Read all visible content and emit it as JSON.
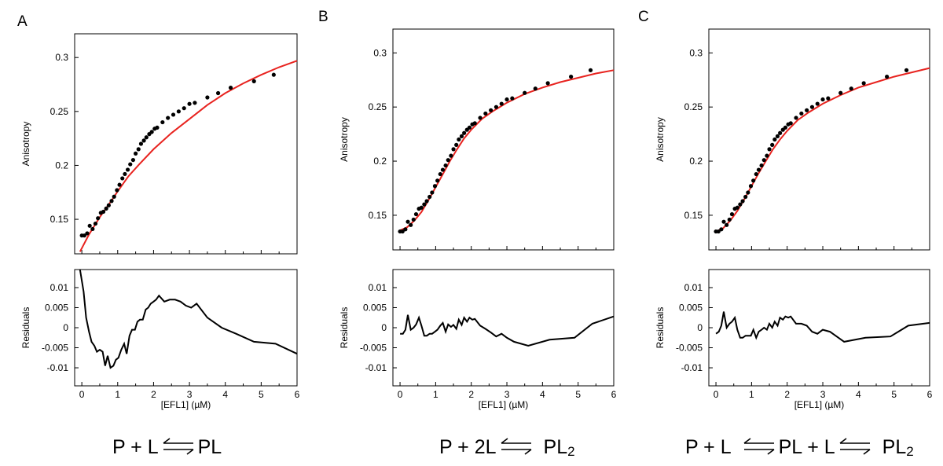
{
  "chart_data": [
    {
      "panel": "A",
      "type": "scatter",
      "xlabel": "[EFL1] (µM)",
      "ylabel": "Anisotropy",
      "residual_ylabel": "Residuals",
      "xlim": [
        -0.2,
        6
      ],
      "ylim": [
        0.118,
        0.322
      ],
      "yticks": [
        0.15,
        0.2,
        0.25,
        0.3
      ],
      "ytick_labels": [
        "0.15",
        "0.2",
        "0.25",
        "0.3"
      ],
      "residual_ylim": [
        -0.0145,
        0.0145
      ],
      "residual_yticks": [
        0.01,
        0.005,
        0,
        -0.005,
        -0.01
      ],
      "residual_ytick_labels": [
        "0.01",
        "0.005",
        "0",
        "-0.005",
        "-0.01"
      ],
      "xticks": [
        0,
        1,
        2,
        3,
        4,
        5,
        6
      ],
      "xtick_labels": [
        "0",
        "1",
        "2",
        "3",
        "4",
        "5",
        "6"
      ],
      "data": {
        "x": [
          0.0,
          0.07,
          0.15,
          0.22,
          0.3,
          0.38,
          0.45,
          0.53,
          0.6,
          0.68,
          0.75,
          0.83,
          0.9,
          0.98,
          1.05,
          1.13,
          1.2,
          1.28,
          1.35,
          1.43,
          1.5,
          1.58,
          1.65,
          1.73,
          1.8,
          1.88,
          1.95,
          2.03,
          2.1,
          2.25,
          2.4,
          2.55,
          2.7,
          2.85,
          3.0,
          3.15,
          3.5,
          3.8,
          4.15,
          4.8,
          5.35
        ],
        "y": [
          0.135,
          0.135,
          0.137,
          0.144,
          0.141,
          0.146,
          0.151,
          0.156,
          0.157,
          0.16,
          0.163,
          0.167,
          0.171,
          0.177,
          0.182,
          0.188,
          0.192,
          0.196,
          0.201,
          0.205,
          0.211,
          0.215,
          0.22,
          0.223,
          0.226,
          0.229,
          0.231,
          0.234,
          0.235,
          0.24,
          0.244,
          0.247,
          0.25,
          0.253,
          0.257,
          0.258,
          0.263,
          0.267,
          0.272,
          0.278,
          0.284
        ]
      },
      "fit": {
        "x": [
          -0.05,
          0.2,
          0.5,
          0.8,
          1.0,
          1.3,
          1.6,
          2.0,
          2.5,
          3.0,
          3.5,
          4.0,
          4.5,
          5.0,
          5.5,
          6.0
        ],
        "y": [
          0.12,
          0.136,
          0.152,
          0.166,
          0.176,
          0.19,
          0.201,
          0.215,
          0.23,
          0.243,
          0.256,
          0.267,
          0.276,
          0.284,
          0.291,
          0.297
        ]
      },
      "residuals": {
        "x": [
          -0.05,
          0.05,
          0.12,
          0.2,
          0.27,
          0.35,
          0.42,
          0.5,
          0.58,
          0.65,
          0.72,
          0.8,
          0.88,
          0.95,
          1.02,
          1.1,
          1.18,
          1.25,
          1.33,
          1.4,
          1.48,
          1.55,
          1.62,
          1.7,
          1.78,
          1.85,
          1.92,
          2.0,
          2.07,
          2.15,
          2.3,
          2.45,
          2.6,
          2.75,
          2.9,
          3.05,
          3.2,
          3.5,
          3.9,
          4.3,
          4.8,
          5.4,
          6.0
        ],
        "y": [
          0.0145,
          0.009,
          0.0025,
          -0.001,
          -0.0035,
          -0.0045,
          -0.006,
          -0.0055,
          -0.006,
          -0.0095,
          -0.007,
          -0.01,
          -0.0095,
          -0.008,
          -0.0075,
          -0.0055,
          -0.004,
          -0.0065,
          -0.002,
          -0.0005,
          -0.0005,
          0.0015,
          0.002,
          0.002,
          0.0045,
          0.005,
          0.006,
          0.0065,
          0.007,
          0.008,
          0.0065,
          0.007,
          0.007,
          0.0065,
          0.0055,
          0.005,
          0.006,
          0.0025,
          0.0,
          -0.0015,
          -0.0035,
          -0.004,
          -0.0065
        ]
      }
    },
    {
      "panel": "B",
      "type": "scatter",
      "xlabel": "[EFL1] (µM)",
      "ylabel": "Anisotropy",
      "residual_ylabel": "Residuals",
      "xlim": [
        -0.2,
        6
      ],
      "ylim": [
        0.118,
        0.322
      ],
      "yticks": [
        0.15,
        0.2,
        0.25,
        0.3
      ],
      "ytick_labels": [
        "0.15",
        "0.2",
        "0.25",
        "0.3"
      ],
      "residual_ylim": [
        -0.0145,
        0.0145
      ],
      "residual_yticks": [
        0.01,
        0.005,
        0,
        -0.005,
        -0.01
      ],
      "residual_ytick_labels": [
        "0.01",
        "0.005",
        "0",
        "-0.005",
        "-0.01"
      ],
      "xticks": [
        0,
        1,
        2,
        3,
        4,
        5,
        6
      ],
      "xtick_labels": [
        "0",
        "1",
        "2",
        "3",
        "4",
        "5",
        "6"
      ],
      "data": {
        "x": [
          0.0,
          0.07,
          0.15,
          0.22,
          0.3,
          0.38,
          0.45,
          0.53,
          0.6,
          0.68,
          0.75,
          0.83,
          0.9,
          0.98,
          1.05,
          1.13,
          1.2,
          1.28,
          1.35,
          1.43,
          1.5,
          1.58,
          1.65,
          1.73,
          1.8,
          1.88,
          1.95,
          2.03,
          2.1,
          2.25,
          2.4,
          2.55,
          2.7,
          2.85,
          3.0,
          3.15,
          3.5,
          3.8,
          4.15,
          4.8,
          5.35
        ],
        "y": [
          0.135,
          0.135,
          0.137,
          0.144,
          0.141,
          0.146,
          0.151,
          0.156,
          0.157,
          0.16,
          0.163,
          0.167,
          0.171,
          0.177,
          0.182,
          0.188,
          0.192,
          0.196,
          0.201,
          0.205,
          0.211,
          0.215,
          0.22,
          0.223,
          0.226,
          0.229,
          0.231,
          0.234,
          0.235,
          0.24,
          0.244,
          0.247,
          0.25,
          0.253,
          0.257,
          0.258,
          0.263,
          0.267,
          0.272,
          0.278,
          0.284
        ]
      },
      "fit": {
        "x": [
          0.0,
          0.2,
          0.4,
          0.6,
          0.8,
          1.0,
          1.2,
          1.4,
          1.6,
          1.8,
          2.0,
          2.3,
          2.6,
          3.0,
          3.5,
          4.0,
          4.5,
          5.0,
          5.5,
          6.0
        ],
        "y": [
          0.136,
          0.139,
          0.145,
          0.153,
          0.164,
          0.176,
          0.188,
          0.2,
          0.211,
          0.221,
          0.229,
          0.239,
          0.246,
          0.254,
          0.262,
          0.268,
          0.273,
          0.277,
          0.281,
          0.284
        ]
      },
      "residuals": {
        "x": [
          0.0,
          0.08,
          0.15,
          0.22,
          0.3,
          0.38,
          0.45,
          0.53,
          0.6,
          0.68,
          0.75,
          0.83,
          0.9,
          0.98,
          1.05,
          1.13,
          1.2,
          1.28,
          1.35,
          1.43,
          1.5,
          1.58,
          1.65,
          1.73,
          1.8,
          1.88,
          1.95,
          2.03,
          2.1,
          2.25,
          2.4,
          2.55,
          2.7,
          2.85,
          3.0,
          3.2,
          3.6,
          4.2,
          4.9,
          5.4,
          6.0
        ],
        "y": [
          -0.0015,
          -0.0015,
          -0.0005,
          0.0032,
          -0.0005,
          0.0,
          0.0008,
          0.0025,
          0.0005,
          -0.002,
          -0.002,
          -0.0015,
          -0.0015,
          -0.001,
          -0.0005,
          0.0005,
          0.0012,
          -0.001,
          0.0008,
          0.0002,
          0.0007,
          -0.0003,
          0.002,
          0.0007,
          0.0025,
          0.0015,
          0.0025,
          0.002,
          0.0022,
          0.0005,
          -0.0003,
          -0.0012,
          -0.0022,
          -0.0015,
          -0.0025,
          -0.0035,
          -0.0045,
          -0.003,
          -0.0025,
          0.001,
          0.0028
        ]
      }
    },
    {
      "panel": "C",
      "type": "scatter",
      "xlabel": "[EFL1] (µM)",
      "ylabel": "Anisotropy",
      "residual_ylabel": "Residuals",
      "xlim": [
        -0.2,
        6
      ],
      "ylim": [
        0.118,
        0.322
      ],
      "yticks": [
        0.15,
        0.2,
        0.25,
        0.3
      ],
      "ytick_labels": [
        "0.15",
        "0.2",
        "0.25",
        "0.3"
      ],
      "residual_ylim": [
        -0.0145,
        0.0145
      ],
      "residual_yticks": [
        0.01,
        0.005,
        0,
        -0.005,
        -0.01
      ],
      "residual_ytick_labels": [
        "0.01",
        "0.005",
        "0",
        "-0.005",
        "-0.01"
      ],
      "xticks": [
        0,
        1,
        2,
        3,
        4,
        5,
        6
      ],
      "xtick_labels": [
        "0",
        "1",
        "2",
        "3",
        "4",
        "5",
        "6"
      ],
      "data": {
        "x": [
          0.0,
          0.07,
          0.15,
          0.22,
          0.3,
          0.38,
          0.45,
          0.53,
          0.6,
          0.68,
          0.75,
          0.83,
          0.9,
          0.98,
          1.05,
          1.13,
          1.2,
          1.28,
          1.35,
          1.43,
          1.5,
          1.58,
          1.65,
          1.73,
          1.8,
          1.88,
          1.95,
          2.03,
          2.1,
          2.25,
          2.4,
          2.55,
          2.7,
          2.85,
          3.0,
          3.15,
          3.5,
          3.8,
          4.15,
          4.8,
          5.35
        ],
        "y": [
          0.135,
          0.135,
          0.137,
          0.144,
          0.141,
          0.146,
          0.151,
          0.156,
          0.157,
          0.16,
          0.163,
          0.167,
          0.171,
          0.177,
          0.182,
          0.188,
          0.192,
          0.196,
          0.201,
          0.205,
          0.211,
          0.215,
          0.22,
          0.223,
          0.226,
          0.229,
          0.231,
          0.234,
          0.235,
          0.24,
          0.244,
          0.247,
          0.25,
          0.253,
          0.257,
          0.258,
          0.263,
          0.267,
          0.272,
          0.278,
          0.284
        ]
      },
      "fit": {
        "x": [
          0.0,
          0.2,
          0.4,
          0.6,
          0.8,
          1.0,
          1.2,
          1.4,
          1.6,
          1.8,
          2.0,
          2.3,
          2.6,
          3.0,
          3.5,
          4.0,
          4.5,
          5.0,
          5.5,
          6.0
        ],
        "y": [
          0.135,
          0.138,
          0.145,
          0.154,
          0.165,
          0.177,
          0.189,
          0.2,
          0.211,
          0.22,
          0.228,
          0.238,
          0.245,
          0.253,
          0.261,
          0.268,
          0.273,
          0.278,
          0.282,
          0.286
        ]
      },
      "residuals": {
        "x": [
          0.0,
          0.08,
          0.15,
          0.22,
          0.3,
          0.38,
          0.45,
          0.53,
          0.6,
          0.68,
          0.75,
          0.83,
          0.9,
          0.98,
          1.05,
          1.13,
          1.2,
          1.28,
          1.35,
          1.43,
          1.5,
          1.58,
          1.65,
          1.73,
          1.8,
          1.88,
          1.95,
          2.03,
          2.1,
          2.25,
          2.4,
          2.55,
          2.7,
          2.85,
          3.0,
          3.2,
          3.6,
          4.2,
          4.9,
          5.4,
          6.0
        ],
        "y": [
          -0.0015,
          -0.001,
          0.0005,
          0.004,
          0.0,
          0.001,
          0.0015,
          0.0025,
          -0.0005,
          -0.0025,
          -0.0025,
          -0.002,
          -0.002,
          -0.002,
          -0.0005,
          -0.0025,
          -0.001,
          -0.0005,
          0.0,
          -0.0005,
          0.001,
          0.0,
          0.0015,
          0.0005,
          0.0025,
          0.002,
          0.0028,
          0.0025,
          0.0028,
          0.001,
          0.001,
          0.0005,
          -0.001,
          -0.0015,
          -0.0005,
          -0.001,
          -0.0035,
          -0.0025,
          -0.0022,
          0.0005,
          0.0012
        ]
      }
    }
  ],
  "panel_letters": [
    "A",
    "B",
    "C"
  ],
  "equations": {
    "a": {
      "p1": "P + L",
      "p2": "PL"
    },
    "b": {
      "p1": "P + 2L",
      "p2": "PL",
      "s2": "2"
    },
    "c": {
      "p1": "P + L",
      "p2": "PL + L",
      "p3": "PL",
      "s3": "2"
    }
  },
  "colors": {
    "fit": "#e8231f",
    "data": "#000000",
    "axis": "#000000"
  }
}
